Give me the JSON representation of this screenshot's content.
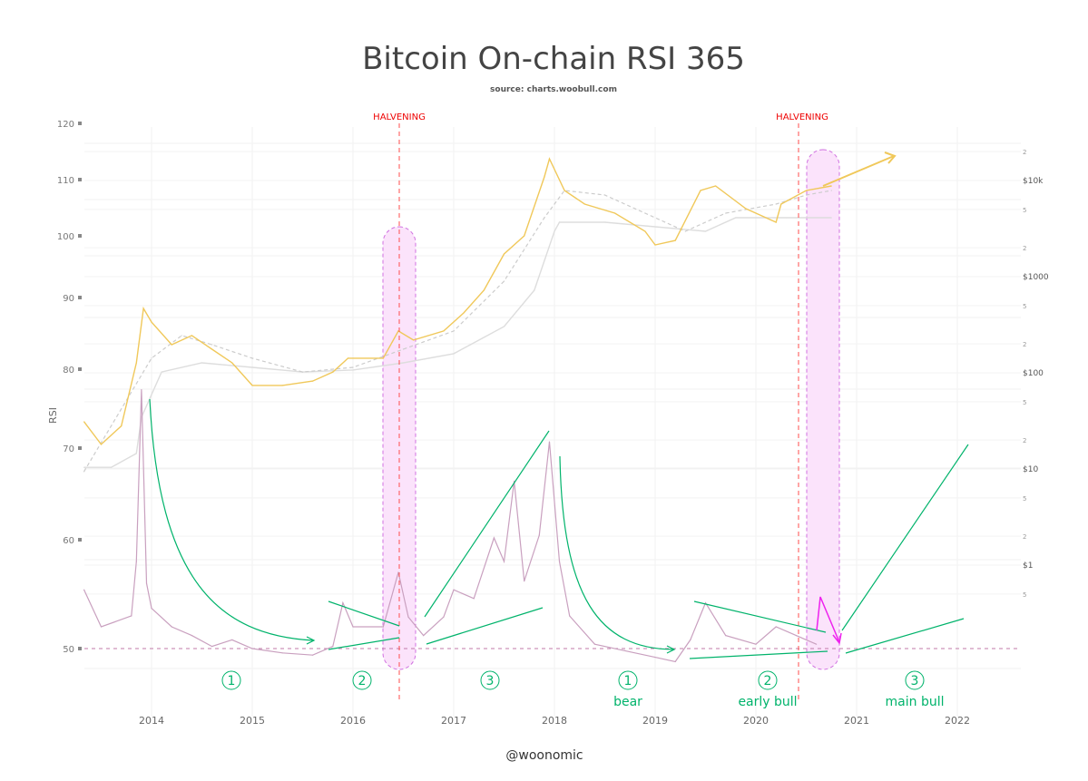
{
  "chart_data": {
    "type": "line",
    "title": "Bitcoin On-chain RSI 365",
    "subtitle": "source: charts.woobull.com",
    "ylabel": "RSI",
    "xlabel": "",
    "x_ticks": [
      "2014",
      "2015",
      "2016",
      "2017",
      "2018",
      "2019",
      "2020",
      "2021",
      "2022"
    ],
    "y_left_ticks": [
      "50",
      "60",
      "70",
      "80",
      "90",
      "100",
      "110",
      "120"
    ],
    "y_right_ticks": [
      "5",
      "$1",
      "2",
      "5",
      "$10",
      "2",
      "5",
      "$100",
      "2",
      "5",
      "$1000",
      "2",
      "5",
      "$10k",
      "2"
    ],
    "y_right_scale": "log",
    "grid": true,
    "colors": {
      "rsi": "#c9a0bf",
      "price": "#f0c85a",
      "ma_dashed": "#cccccc",
      "ma_solid": "#dddddd",
      "halvening": "#ff4d4d",
      "annotation": "#00b36b",
      "highlight": "#e066e0"
    },
    "series": [
      {
        "axis": "left",
        "x": [
          2013.33,
          2013.5,
          2013.8,
          2013.85,
          2013.9,
          2013.95,
          2014.0,
          2014.2,
          2014.4,
          2014.6,
          2014.8,
          2015.0,
          2015.3,
          2015.6,
          2015.8,
          2015.9,
          2016.0,
          2016.3,
          2016.45,
          2016.55,
          2016.7,
          2016.9,
          2017.0,
          2017.2,
          2017.4,
          2017.5,
          2017.6,
          2017.7,
          2017.85,
          2017.95,
          2018.05,
          2018.15,
          2018.4,
          2018.7,
          2019.0,
          2019.2,
          2019.35,
          2019.5,
          2019.7,
          2020.0,
          2020.2,
          2020.4,
          2020.6
        ],
        "values": [
          55.4,
          52,
          53,
          58,
          77.4,
          56,
          53.7,
          52,
          51.2,
          50.2,
          50.8,
          50,
          49.6,
          49.4,
          50.2,
          54.2,
          52,
          52,
          57,
          52.9,
          51.2,
          52.9,
          55.4,
          54.6,
          60.2,
          58,
          66.4,
          56.2,
          60.5,
          70.8,
          58,
          53,
          50.4,
          49.8,
          49.2,
          48.8,
          50.8,
          54.2,
          51.2,
          50.4,
          52,
          51.2,
          50.4
        ]
      },
      {
        "axis": "right",
        "x": [
          2013.33,
          2013.5,
          2013.7,
          2013.85,
          2013.92,
          2014.0,
          2014.2,
          2014.4,
          2014.6,
          2014.8,
          2015.0,
          2015.3,
          2015.6,
          2015.8,
          2015.95,
          2016.3,
          2016.45,
          2016.6,
          2016.9,
          2017.1,
          2017.3,
          2017.5,
          2017.7,
          2017.9,
          2017.95,
          2018.1,
          2018.3,
          2018.6,
          2018.9,
          2019.0,
          2019.2,
          2019.45,
          2019.6,
          2019.9,
          2020.2,
          2020.25,
          2020.5,
          2020.75
        ],
        "values": [
          31,
          18,
          28,
          127,
          468,
          337,
          196,
          244,
          176,
          127,
          74,
          74,
          82,
          102,
          142,
          142,
          272,
          219,
          272,
          420,
          722,
          1722,
          2660,
          10900,
          16800,
          7870,
          5690,
          4570,
          2960,
          2140,
          2380,
          7870,
          8770,
          5100,
          3680,
          5690,
          7870,
          8770
        ]
      },
      {
        "axis": "right",
        "style": "dashed",
        "x": [
          2013.33,
          2014.0,
          2014.3,
          2014.6,
          2015.0,
          2015.5,
          2016.0,
          2016.5,
          2017.0,
          2017.5,
          2017.9,
          2018.1,
          2018.5,
          2018.9,
          2019.3,
          2019.7,
          2020.2,
          2020.5,
          2020.75
        ],
        "values": [
          9.4,
          142,
          244,
          196,
          142,
          102,
          114,
          176,
          272,
          897,
          4100,
          7870,
          7060,
          4570,
          2960,
          4570,
          5690,
          7060,
          7870
        ]
      },
      {
        "axis": "right",
        "style": "solid",
        "x": [
          2013.33,
          2013.6,
          2013.85,
          2013.9,
          2014.1,
          2014.5,
          2015.0,
          2015.5,
          2016.0,
          2016.5,
          2017.0,
          2017.5,
          2017.8,
          2018.0,
          2018.05,
          2018.5,
          2019.0,
          2019.5,
          2019.8,
          2020.3,
          2020.75
        ],
        "values": [
          10.4,
          10.4,
          14.5,
          34.5,
          102,
          127,
          114,
          102,
          107,
          127,
          158,
          303,
          722,
          2960,
          3680,
          3680,
          3300,
          2960,
          4100,
          4100,
          4100
        ]
      }
    ],
    "reference_line": {
      "rsi": 50,
      "style": "dashed"
    },
    "annotations": {
      "halvening_1": "HALVENING",
      "halvening_2": "HALVENING",
      "phase_1a": "1",
      "phase_2a": "2",
      "phase_3a": "3",
      "phase_1b": "1",
      "phase_2b": "2",
      "phase_3b": "3",
      "label_bear": "bear",
      "label_early_bull": "early bull",
      "label_main_bull": "main bull"
    }
  },
  "footer": {
    "credit": "@woonomic"
  }
}
